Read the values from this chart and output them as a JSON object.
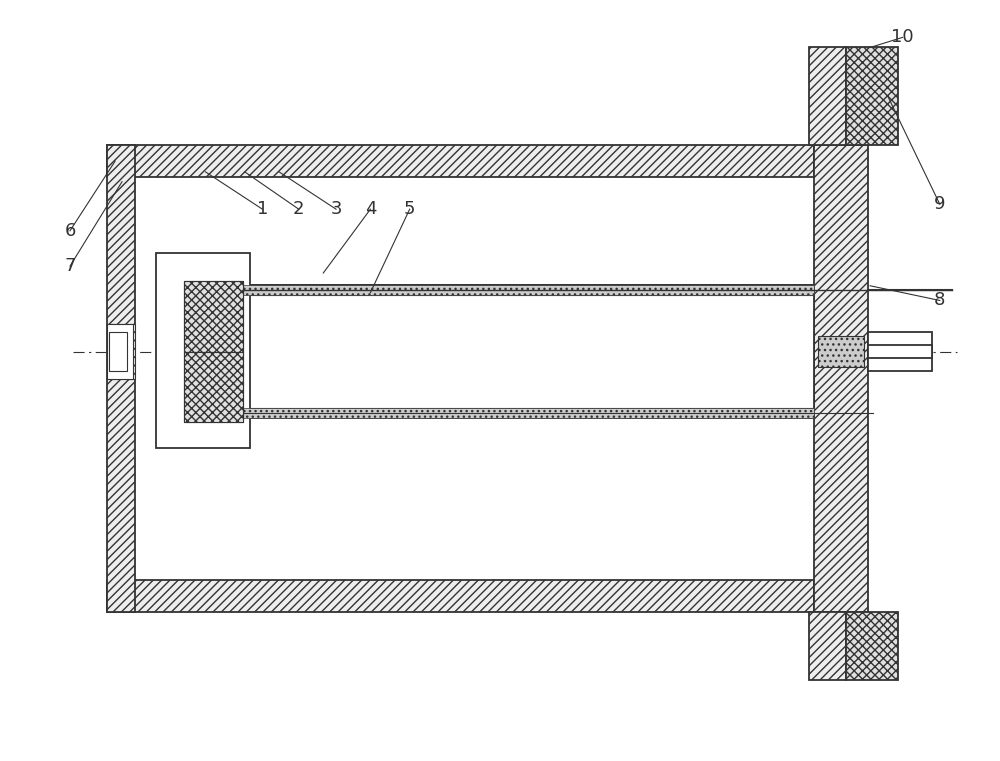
{
  "bg_color": "#ffffff",
  "line_color": "#333333",
  "fig_width": 10.0,
  "fig_height": 7.61,
  "label_fontsize": 13
}
